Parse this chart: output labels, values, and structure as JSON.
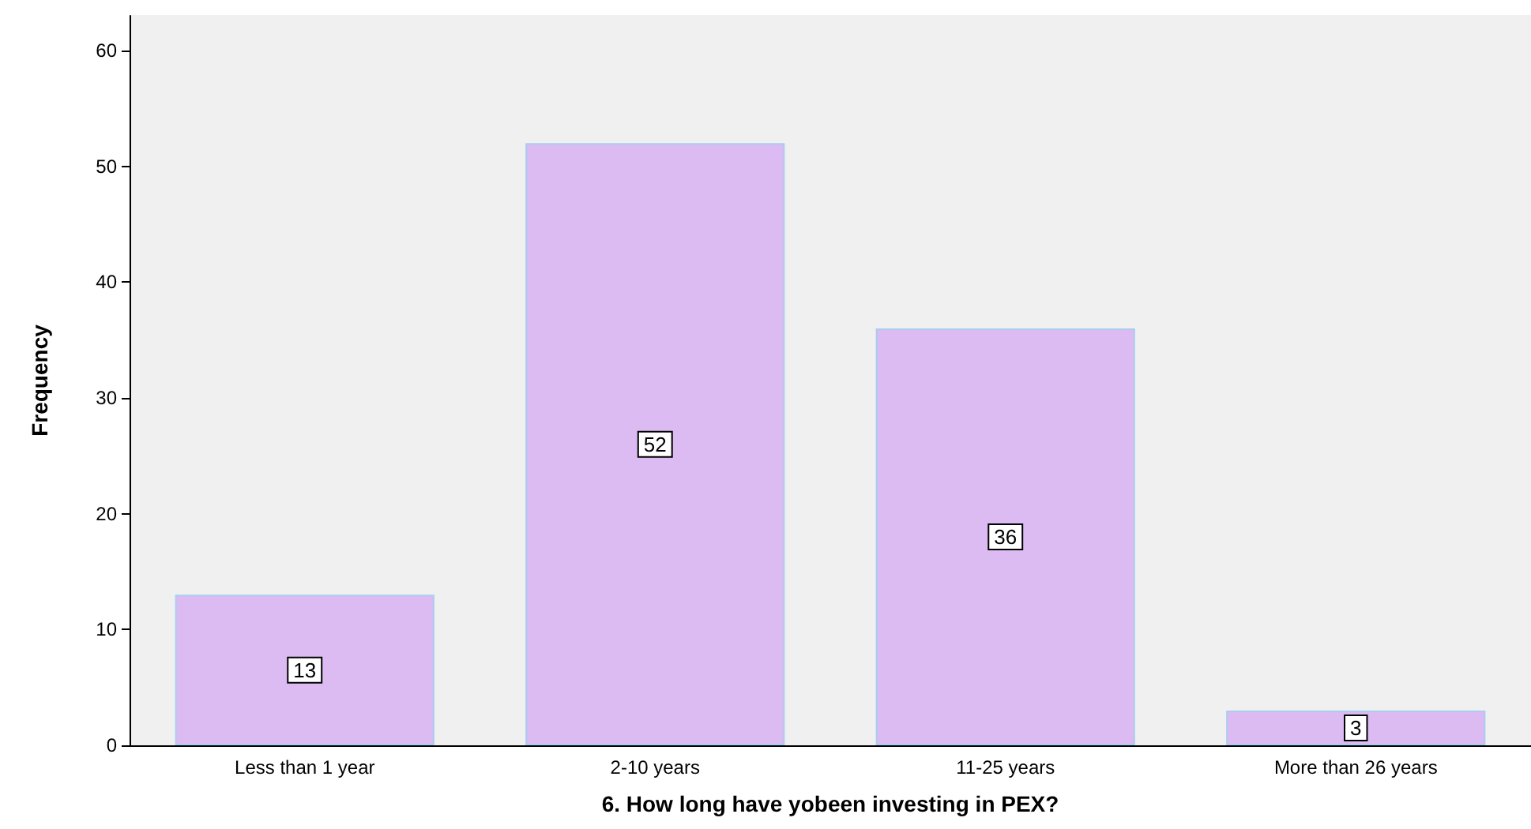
{
  "chart_data": {
    "type": "bar",
    "xlabel": "6. How long have yobeen investing in PEX?",
    "ylabel": "Frequency",
    "categories": [
      "Less than 1 year",
      "2-10 years",
      "11-25 years",
      "More than 26 years"
    ],
    "values": [
      13,
      52,
      36,
      3
    ],
    "color": "#dcbaf2",
    "ylim": [
      0,
      63
    ],
    "yticks": [
      0,
      10,
      20,
      30,
      40,
      50,
      60
    ],
    "grid": false,
    "data_labels": true
  }
}
